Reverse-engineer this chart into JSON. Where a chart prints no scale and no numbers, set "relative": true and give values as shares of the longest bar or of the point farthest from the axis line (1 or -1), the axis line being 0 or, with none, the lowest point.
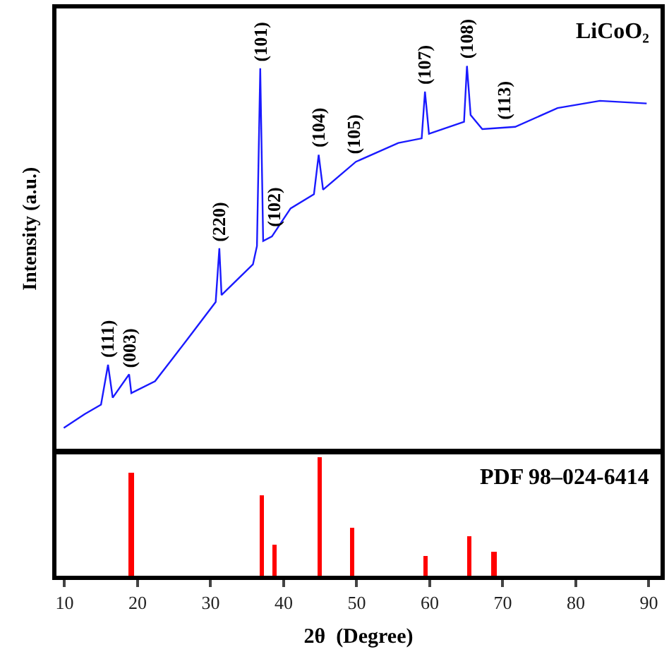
{
  "chart_data": [
    {
      "type": "line",
      "relative": true,
      "color": "#1a1aff",
      "ylabel": "Intensity (a.u.)",
      "xlim": [
        8.9,
        91.6
      ],
      "tick_labels": false,
      "x": [
        9.9,
        12.75,
        15.0,
        15.96,
        16.6,
        18.85,
        19.15,
        22.4,
        26.85,
        30.7,
        31.2,
        31.5,
        35.8,
        36.35,
        36.8,
        37.2,
        38.4,
        40.95,
        44.15,
        44.8,
        45.4,
        49.9,
        55.7,
        58.9,
        59.35,
        59.9,
        64.7,
        65.1,
        65.6,
        67.2,
        71.7,
        77.5,
        83.3,
        89.7
      ],
      "values": [
        0.055,
        0.091,
        0.116,
        0.22,
        0.134,
        0.195,
        0.146,
        0.177,
        0.287,
        0.384,
        0.524,
        0.402,
        0.482,
        0.53,
        0.994,
        0.543,
        0.555,
        0.628,
        0.665,
        0.768,
        0.677,
        0.75,
        0.799,
        0.811,
        0.933,
        0.823,
        0.854,
        1.0,
        0.872,
        0.835,
        0.841,
        0.89,
        0.909,
        0.902
      ],
      "annotations": [
        "LiCoO₂",
        {
          "text": "(111)",
          "x": 15.96,
          "y": 0.22
        },
        {
          "text": "(003)",
          "x": 18.85,
          "y": 0.195
        },
        {
          "text": "(220)",
          "x": 31.2,
          "y": 0.524
        },
        {
          "text": "(101)",
          "x": 36.8,
          "y": 0.994
        },
        {
          "text": "(102)",
          "x": 38.6,
          "y": 0.56
        },
        {
          "text": "(104)",
          "x": 44.8,
          "y": 0.768
        },
        {
          "text": "(105)",
          "x": 49.6,
          "y": 0.75
        },
        {
          "text": "(107)",
          "x": 59.35,
          "y": 0.933
        },
        {
          "text": "(108)",
          "x": 65.1,
          "y": 1.0
        },
        {
          "text": "(113)",
          "x": 70.2,
          "y": 0.84
        }
      ]
    },
    {
      "type": "bar",
      "relative": true,
      "color": "#ff0000",
      "xlabel": "2θ  (Degree)",
      "xlim": [
        8.9,
        91.6
      ],
      "xticks": [
        10,
        20,
        30,
        40,
        50,
        60,
        70,
        80,
        90
      ],
      "tick_labels": "x",
      "x": [
        19.15,
        37.0,
        38.7,
        45.0,
        49.3,
        59.5,
        65.4,
        68.8
      ],
      "values": [
        0.861,
        0.675,
        0.254,
        1.0,
        0.397,
        0.159,
        0.333,
        0.198
      ],
      "annotations": [
        "PDF 98–024-6414"
      ]
    }
  ]
}
